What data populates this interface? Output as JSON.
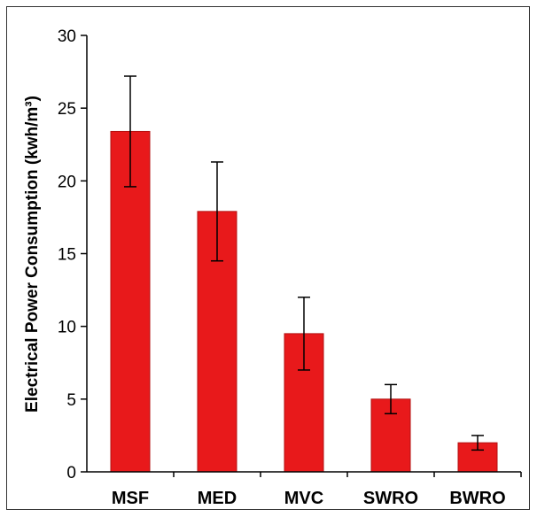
{
  "chart_data": {
    "type": "bar",
    "title": "",
    "xlabel": "",
    "ylabel": "Electrical Power Consumption (kwh/m³)",
    "categories": [
      "MSF",
      "MED",
      "MVC",
      "SWRO",
      "BWRO"
    ],
    "values": [
      23.4,
      17.9,
      9.5,
      5.0,
      2.0
    ],
    "error_low": [
      19.6,
      14.5,
      7.0,
      4.0,
      1.5
    ],
    "error_high": [
      27.2,
      21.3,
      12.0,
      6.0,
      2.5
    ],
    "ylim": [
      0,
      30
    ],
    "yticks": [
      "0",
      "5",
      "10",
      "15",
      "20",
      "25",
      "30"
    ],
    "ytick_values": [
      0,
      5,
      10,
      15,
      20,
      25,
      30
    ],
    "grid": false,
    "legend": "none",
    "bar_color": "#e8191b",
    "bar_edge_color": "#b31010"
  }
}
